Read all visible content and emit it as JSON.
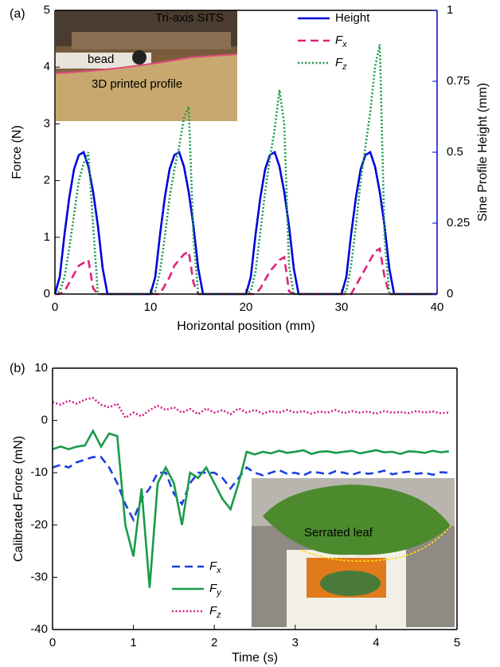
{
  "chart_data": [
    {
      "type": "line",
      "panel_label": "(a)",
      "xlabel": "Horizontal position  (mm)",
      "ylabel": "Force (N)",
      "y2label": "Sine Profile Height (mm)",
      "xlim": [
        0,
        40
      ],
      "xticks": [
        0,
        10,
        20,
        30,
        40
      ],
      "ylim": [
        0,
        5
      ],
      "yticks": [
        0,
        1,
        2,
        3,
        4,
        5
      ],
      "y2lim": [
        0,
        1
      ],
      "y2ticks": [
        0,
        0.25,
        0.5,
        0.75,
        1
      ],
      "legend": "upper right",
      "annotations": [
        "Tri-axis SITS",
        "bead",
        "3D printed profile"
      ],
      "x": [
        0,
        0.5,
        1,
        1.5,
        2,
        2.5,
        3,
        3.5,
        4,
        4.5,
        5,
        5.5,
        6,
        6.5,
        7,
        7.5,
        8,
        8.5,
        9,
        9.5,
        10,
        10.5,
        11,
        11.5,
        12,
        12.5,
        13,
        13.5,
        14,
        14.5,
        15,
        15.5,
        16,
        16.5,
        17,
        17.5,
        18,
        18.5,
        19,
        19.5,
        20,
        20.5,
        21,
        21.5,
        22,
        22.5,
        23,
        23.5,
        24,
        24.5,
        25,
        25.5,
        26,
        26.5,
        27,
        27.5,
        28,
        28.5,
        29,
        29.5,
        30,
        30.5,
        31,
        31.5,
        32,
        32.5,
        33,
        33.5,
        34,
        34.5,
        35,
        35.5,
        36,
        36.5,
        37,
        37.5,
        38,
        38.5,
        39,
        39.5,
        40
      ],
      "series": [
        {
          "name": "Height",
          "color": "#0000dd",
          "dash": "solid",
          "axis": "y2",
          "values": [
            0,
            0.06,
            0.21,
            0.34,
            0.44,
            0.49,
            0.5,
            0.45,
            0.36,
            0.24,
            0.09,
            0,
            0,
            0,
            0,
            0,
            0,
            0,
            0,
            0,
            0,
            0.06,
            0.21,
            0.34,
            0.44,
            0.49,
            0.5,
            0.45,
            0.36,
            0.24,
            0.09,
            0,
            0,
            0,
            0,
            0,
            0,
            0,
            0,
            0,
            0,
            0.06,
            0.21,
            0.34,
            0.44,
            0.49,
            0.5,
            0.45,
            0.36,
            0.24,
            0.09,
            0,
            0,
            0,
            0,
            0,
            0,
            0,
            0,
            0,
            0,
            0.06,
            0.21,
            0.34,
            0.44,
            0.49,
            0.5,
            0.45,
            0.36,
            0.24,
            0.09,
            0,
            0,
            0,
            0,
            0,
            0,
            0,
            0,
            0,
            0
          ]
        },
        {
          "name": "Fx",
          "color": "#e0207a",
          "dash": "dashed",
          "values": [
            0,
            0,
            0.05,
            0.2,
            0.35,
            0.5,
            0.55,
            0.6,
            0.1,
            0,
            0,
            0,
            0,
            0,
            0,
            0,
            0,
            0,
            0,
            0,
            0,
            0,
            0,
            0.15,
            0.3,
            0.5,
            0.6,
            0.7,
            0.75,
            0.2,
            0,
            0,
            0,
            0,
            0,
            0,
            0,
            0,
            0,
            0,
            0,
            0,
            0,
            0.1,
            0.25,
            0.4,
            0.5,
            0.6,
            0.65,
            0.05,
            0,
            0,
            0,
            0,
            0,
            0,
            0,
            0,
            0,
            0,
            0,
            0,
            0,
            0.15,
            0.3,
            0.45,
            0.6,
            0.75,
            0.8,
            0.3,
            0,
            0,
            0,
            0,
            0,
            0,
            0,
            0,
            0,
            0,
            0
          ]
        },
        {
          "name": "Fz",
          "color": "#1a9a4a",
          "dash": "dotted",
          "values": [
            0,
            0.05,
            0.3,
            0.8,
            1.4,
            2.0,
            2.3,
            2.5,
            1.2,
            0,
            0,
            0,
            0,
            0,
            0,
            0,
            0,
            0,
            0,
            0,
            0,
            0.05,
            0.4,
            1.0,
            1.7,
            2.2,
            2.6,
            3.1,
            3.3,
            1.0,
            0,
            0,
            0,
            0,
            0,
            0,
            0,
            0,
            0,
            0,
            0,
            0.05,
            0.4,
            1.1,
            1.8,
            2.4,
            2.9,
            3.6,
            3.0,
            0.5,
            0,
            0,
            0,
            0,
            0,
            0,
            0,
            0,
            0,
            0,
            0,
            0.05,
            0.5,
            1.2,
            2.0,
            2.6,
            3.2,
            4.0,
            4.4,
            1.0,
            0,
            0,
            0,
            0,
            0,
            0,
            0,
            0,
            0,
            0,
            0
          ]
        }
      ]
    },
    {
      "type": "line",
      "panel_label": "(b)",
      "xlabel": "Time (s)",
      "ylabel": "Calibrated Force (mN)",
      "xlim": [
        0,
        5
      ],
      "xticks": [
        0,
        1,
        2,
        3,
        4,
        5
      ],
      "ylim": [
        -40,
        10
      ],
      "yticks": [
        -40,
        -30,
        -20,
        -10,
        0,
        10
      ],
      "legend": "lower left",
      "annotations": [
        "Serrated leaf"
      ],
      "x": [
        0,
        0.1,
        0.2,
        0.3,
        0.4,
        0.5,
        0.6,
        0.7,
        0.8,
        0.9,
        1,
        1.1,
        1.2,
        1.3,
        1.4,
        1.5,
        1.6,
        1.7,
        1.8,
        1.9,
        2,
        2.1,
        2.2,
        2.3,
        2.4,
        2.5,
        2.6,
        2.7,
        2.8,
        2.9,
        3,
        3.1,
        3.2,
        3.3,
        3.4,
        3.5,
        3.6,
        3.7,
        3.8,
        3.9,
        4,
        4.1,
        4.2,
        4.3,
        4.4,
        4.5,
        4.6,
        4.7,
        4.8,
        4.9
      ],
      "series": [
        {
          "name": "Fx",
          "color": "#1a3fe0",
          "dash": "dashed",
          "values": [
            -9,
            -8.5,
            -9,
            -8,
            -7.5,
            -7,
            -7,
            -9,
            -12,
            -16,
            -19,
            -15,
            -13,
            -10,
            -10,
            -14,
            -16,
            -12,
            -10,
            -10,
            -10,
            -11,
            -13,
            -11,
            -9,
            -10,
            -10.5,
            -10,
            -9.5,
            -10.2,
            -10,
            -10.5,
            -9.8,
            -10,
            -10.3,
            -9.7,
            -10,
            -10.4,
            -9.9,
            -10.2,
            -10,
            -9.6,
            -10.3,
            -10,
            -9.8,
            -10.2,
            -10,
            -10.4,
            -9.9,
            -10
          ]
        },
        {
          "name": "Fy",
          "color": "#1a9a4a",
          "dash": "solid",
          "values": [
            -5.5,
            -5,
            -5.5,
            -5,
            -4.8,
            -2,
            -5,
            -2.5,
            -3,
            -20,
            -26,
            -13,
            -32,
            -12,
            -9,
            -12,
            -20,
            -10,
            -11,
            -9,
            -12,
            -15,
            -17,
            -12,
            -6,
            -6.5,
            -6,
            -6.3,
            -5.8,
            -6.2,
            -6,
            -5.7,
            -6.4,
            -6,
            -5.9,
            -6.2,
            -6,
            -5.8,
            -6.3,
            -6,
            -5.7,
            -6.1,
            -6,
            -6.4,
            -5.9,
            -6,
            -6.2,
            -5.8,
            -6.1,
            -5.9
          ]
        },
        {
          "name": "Fz",
          "color": "#d0208a",
          "dash": "dotted",
          "values": [
            3.5,
            3.0,
            3.8,
            3.2,
            4.0,
            4.3,
            3.0,
            2.5,
            3.2,
            0.5,
            1.5,
            0.8,
            2.0,
            2.8,
            2.0,
            2.5,
            1.5,
            2.2,
            1.2,
            2.3,
            1.5,
            2.0,
            1.2,
            2.3,
            1.5,
            2.0,
            1.3,
            1.8,
            1.5,
            2.0,
            1.5,
            1.8,
            1.3,
            1.7,
            1.5,
            2.0,
            1.4,
            1.8,
            1.5,
            1.7,
            1.3,
            1.8,
            1.5,
            1.6,
            1.4,
            1.8,
            1.5,
            1.7,
            1.4,
            1.5
          ]
        }
      ]
    }
  ]
}
